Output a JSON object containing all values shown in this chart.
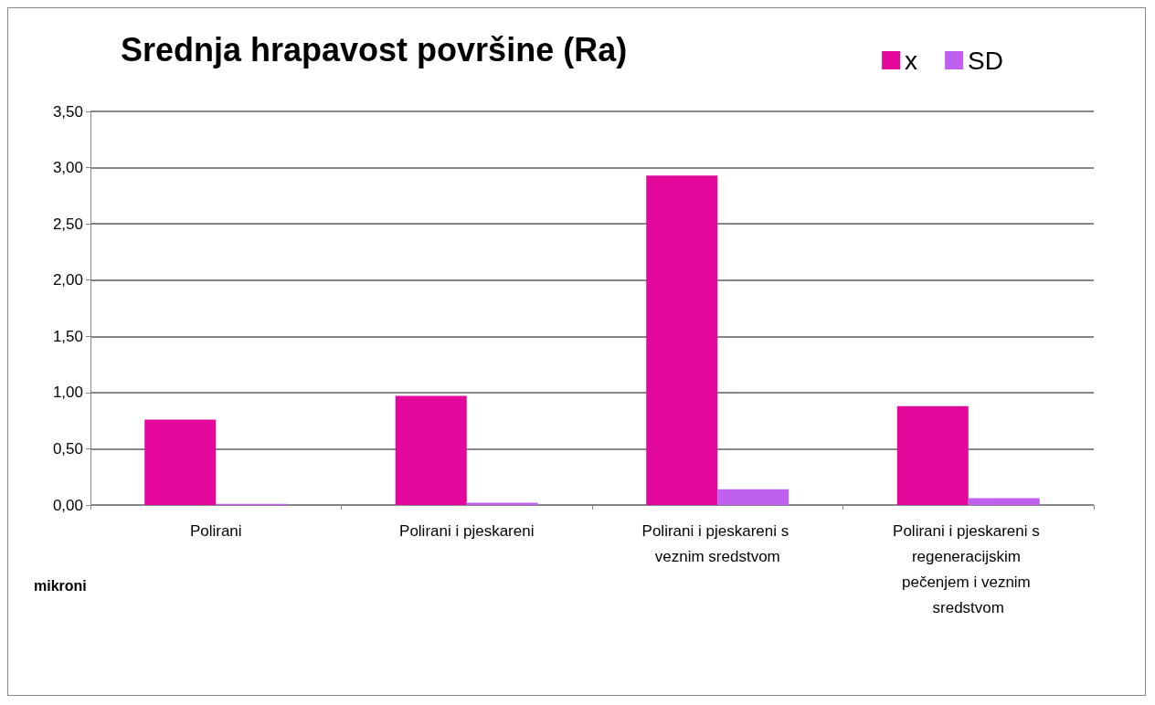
{
  "chart_data": {
    "type": "bar",
    "title": "Srednja hrapavost površine (Ra)",
    "ylabel": "mikroni",
    "categories": [
      "Polirani",
      "Polirani i pjeskareni",
      "Polirani i pjeskareni s veznim sredstvom",
      "Polirani i pjeskareni s regeneracijskim pečenjem i veznim sredstvom"
    ],
    "series": [
      {
        "name": "x",
        "color": "#e3079b",
        "values": [
          0.76,
          0.97,
          2.93,
          0.88
        ]
      },
      {
        "name": "SD",
        "color": "#c060f0",
        "values": [
          0.01,
          0.02,
          0.14,
          0.06
        ]
      }
    ],
    "ylim": [
      0,
      3.5
    ],
    "yticks": [
      {
        "value": 0,
        "label": "0,00"
      },
      {
        "value": 0.5,
        "label": "0,50"
      },
      {
        "value": 1,
        "label": "1,00"
      },
      {
        "value": 1.5,
        "label": "1,50"
      },
      {
        "value": 2,
        "label": "2,00"
      },
      {
        "value": 2.5,
        "label": "2,50"
      },
      {
        "value": 3,
        "label": "3,00"
      },
      {
        "value": 3.5,
        "label": "3,50"
      }
    ],
    "grid": "y",
    "legend": "top right"
  }
}
